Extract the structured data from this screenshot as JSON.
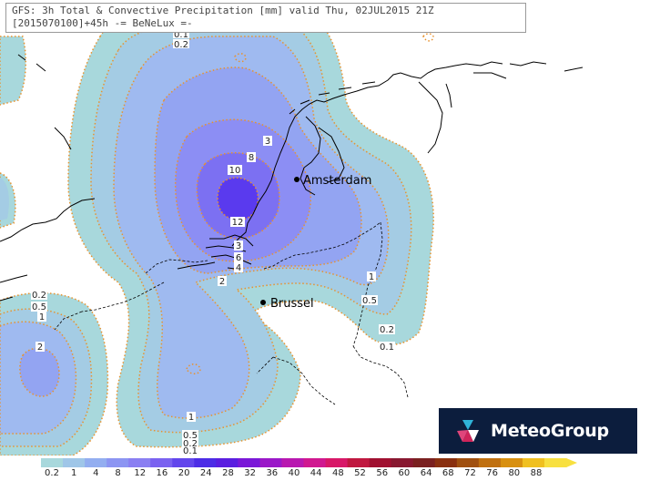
{
  "title": {
    "line1": "GFS: 3h Total & Convective Precipitation [mm] valid Thu, 02JUL2015 21Z",
    "line2": "[2015070100]+45h  -= BeNeLux =-"
  },
  "cities": [
    {
      "name": "Amsterdam"
    },
    {
      "name": "Brussel"
    }
  ],
  "contour_labels": [
    "0.1",
    "0.2",
    "3",
    "8",
    "10",
    "12",
    "3",
    "6",
    "4",
    "2",
    "1",
    "0.5",
    "0.2",
    "0.1",
    "0.2",
    "0.5",
    "1",
    "2",
    "1",
    "0.5",
    "0.2",
    "0.1"
  ],
  "colorbar": {
    "labels": [
      "0.2",
      "1",
      "4",
      "8",
      "12",
      "16",
      "20",
      "24",
      "28",
      "32",
      "36",
      "40",
      "44",
      "48",
      "52",
      "56",
      "60",
      "64",
      "68",
      "72",
      "76",
      "80",
      "88"
    ],
    "colors": [
      "#a8d8dc",
      "#9fc6e8",
      "#93aef0",
      "#8c95f2",
      "#8a7ff2",
      "#7a62f0",
      "#6246ec",
      "#4c2ce6",
      "#5a1ee0",
      "#7a18d8",
      "#9a18c8",
      "#b818b0",
      "#d01890",
      "#d81868",
      "#c01840",
      "#a01030",
      "#881830",
      "#7a2020",
      "#8a3010",
      "#a05010",
      "#c07010",
      "#d89010",
      "#f0c020",
      "#f8e040"
    ]
  },
  "precip_levels": {
    "0.1": "#a8d8dc",
    "0.5": "#a4cce4",
    "1": "#9fbaf0",
    "2": "#93a4f2",
    "4": "#8c8ef4",
    "8": "#7c70f2",
    "12": "#5a3aee"
  },
  "contour_color": "#e8922e",
  "coast_color": "#000000",
  "logo": {
    "name": "MeteoGroup"
  }
}
